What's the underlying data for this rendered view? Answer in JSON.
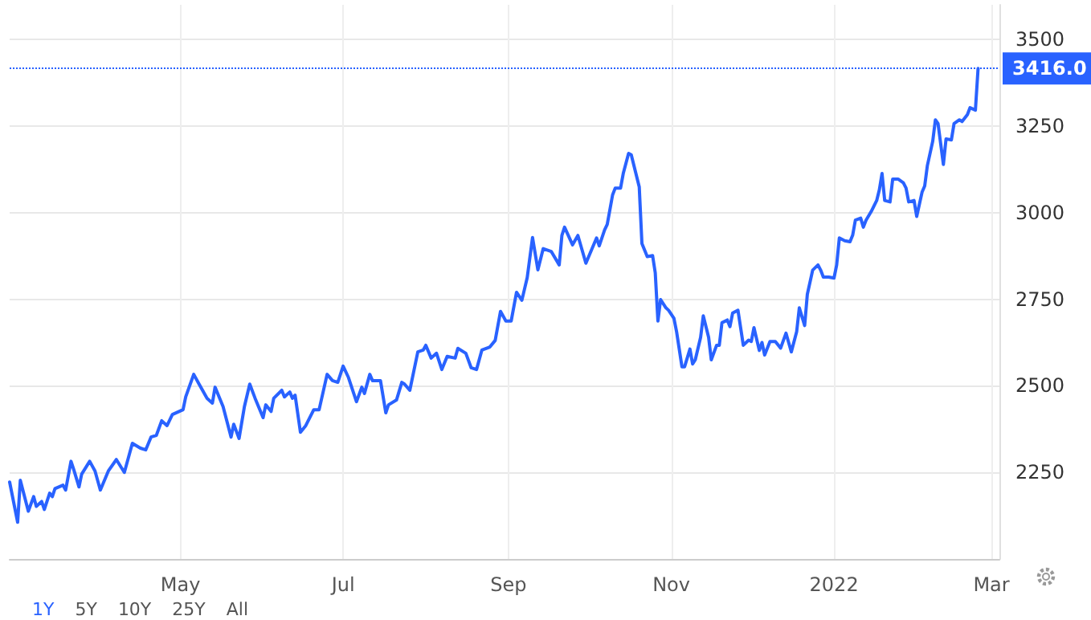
{
  "chart_data": {
    "type": "line",
    "x": [
      "2021-02-26",
      "2021-03-01",
      "2021-03-02",
      "2021-03-05",
      "2021-03-07",
      "2021-03-08",
      "2021-03-10",
      "2021-03-11",
      "2021-03-13",
      "2021-03-14",
      "2021-03-15",
      "2021-03-18",
      "2021-03-19",
      "2021-03-21",
      "2021-03-22",
      "2021-03-24",
      "2021-03-25",
      "2021-03-28",
      "2021-03-30",
      "2021-04-01",
      "2021-04-04",
      "2021-04-07",
      "2021-04-10",
      "2021-04-13",
      "2021-04-16",
      "2021-04-18",
      "2021-04-20",
      "2021-04-22",
      "2021-04-24",
      "2021-04-26",
      "2021-04-28",
      "2021-05-02",
      "2021-05-03",
      "2021-05-06",
      "2021-05-08",
      "2021-05-11",
      "2021-05-13",
      "2021-05-14",
      "2021-05-17",
      "2021-05-20",
      "2021-05-21",
      "2021-05-23",
      "2021-05-25",
      "2021-05-27",
      "2021-05-29",
      "2021-06-01",
      "2021-06-02",
      "2021-06-04",
      "2021-06-05",
      "2021-06-08",
      "2021-06-09",
      "2021-06-11",
      "2021-06-12",
      "2021-06-13",
      "2021-06-15",
      "2021-06-17",
      "2021-06-20",
      "2021-06-22",
      "2021-06-25",
      "2021-06-27",
      "2021-06-29",
      "2021-07-01",
      "2021-07-03",
      "2021-07-06",
      "2021-07-08",
      "2021-07-09",
      "2021-07-11",
      "2021-07-12",
      "2021-07-15",
      "2021-07-17",
      "2021-07-18",
      "2021-07-21",
      "2021-07-23",
      "2021-07-24",
      "2021-07-26",
      "2021-07-29",
      "2021-07-31",
      "2021-08-01",
      "2021-08-03",
      "2021-08-05",
      "2021-08-07",
      "2021-08-09",
      "2021-08-12",
      "2021-08-13",
      "2021-08-16",
      "2021-08-18",
      "2021-08-20",
      "2021-08-22",
      "2021-08-25",
      "2021-08-27",
      "2021-08-29",
      "2021-08-31",
      "2021-09-02",
      "2021-09-04",
      "2021-09-06",
      "2021-09-08",
      "2021-09-10",
      "2021-09-12",
      "2021-09-14",
      "2021-09-17",
      "2021-09-20",
      "2021-09-21",
      "2021-09-22",
      "2021-09-25",
      "2021-09-27",
      "2021-09-30",
      "2021-10-04",
      "2021-10-05",
      "2021-10-07",
      "2021-10-08",
      "2021-10-10",
      "2021-10-11",
      "2021-10-13",
      "2021-10-14",
      "2021-10-16",
      "2021-10-17",
      "2021-10-20",
      "2021-10-21",
      "2021-10-23",
      "2021-10-25",
      "2021-10-26",
      "2021-10-27",
      "2021-10-28",
      "2021-10-30",
      "2021-10-31",
      "2021-11-02",
      "2021-11-03",
      "2021-11-05",
      "2021-11-06",
      "2021-11-08",
      "2021-11-09",
      "2021-11-10",
      "2021-11-12",
      "2021-11-13",
      "2021-11-15",
      "2021-11-16",
      "2021-11-18",
      "2021-11-19",
      "2021-11-20",
      "2021-11-22",
      "2021-11-23",
      "2021-11-24",
      "2021-11-26",
      "2021-11-28",
      "2021-11-30",
      "2021-12-01",
      "2021-12-02",
      "2021-12-04",
      "2021-12-05",
      "2021-12-06",
      "2021-12-08",
      "2021-12-10",
      "2021-12-12",
      "2021-12-14",
      "2021-12-15",
      "2021-12-16",
      "2021-12-18",
      "2021-12-19",
      "2021-12-21",
      "2021-12-22",
      "2021-12-24",
      "2021-12-26",
      "2021-12-27",
      "2021-12-28",
      "2021-12-30",
      "2022-01-01",
      "2022-01-02",
      "2022-01-03",
      "2022-01-05",
      "2022-01-07",
      "2022-01-08",
      "2022-01-09",
      "2022-01-11",
      "2022-01-12",
      "2022-01-13",
      "2022-01-15",
      "2022-01-17",
      "2022-01-18",
      "2022-01-19",
      "2022-01-20",
      "2022-01-22",
      "2022-01-23",
      "2022-01-25",
      "2022-01-27",
      "2022-01-28",
      "2022-01-29",
      "2022-01-31",
      "2022-02-01",
      "2022-02-03",
      "2022-02-04",
      "2022-02-05",
      "2022-02-07",
      "2022-02-08",
      "2022-02-09",
      "2022-02-11",
      "2022-02-12",
      "2022-02-14",
      "2022-02-15",
      "2022-02-17",
      "2022-02-18",
      "2022-02-20",
      "2022-02-21",
      "2022-02-23",
      "2022-02-24"
    ],
    "series": [
      {
        "color": "#2962ff",
        "values": [
          2222,
          2106,
          2227,
          2138,
          2180,
          2152,
          2166,
          2143,
          2190,
          2180,
          2203,
          2213,
          2199,
          2282,
          2259,
          2208,
          2245,
          2282,
          2254,
          2199,
          2254,
          2287,
          2250,
          2334,
          2320,
          2315,
          2352,
          2357,
          2399,
          2385,
          2417,
          2431,
          2468,
          2533,
          2505,
          2464,
          2450,
          2496,
          2440,
          2352,
          2389,
          2348,
          2440,
          2505,
          2464,
          2408,
          2445,
          2426,
          2464,
          2487,
          2468,
          2482,
          2464,
          2473,
          2366,
          2385,
          2431,
          2431,
          2533,
          2515,
          2510,
          2557,
          2524,
          2454,
          2496,
          2478,
          2533,
          2515,
          2515,
          2422,
          2445,
          2459,
          2510,
          2505,
          2487,
          2598,
          2603,
          2617,
          2580,
          2594,
          2547,
          2585,
          2580,
          2608,
          2594,
          2552,
          2547,
          2603,
          2612,
          2631,
          2715,
          2687,
          2687,
          2770,
          2747,
          2812,
          2928,
          2835,
          2896,
          2888,
          2849,
          2934,
          2958,
          2907,
          2934,
          2854,
          2927,
          2904,
          2950,
          2966,
          3051,
          3071,
          3071,
          3113,
          3171,
          3167,
          3074,
          2911,
          2873,
          2876,
          2826,
          2687,
          2749,
          2725,
          2718,
          2695,
          2656,
          2555,
          2555,
          2606,
          2563,
          2575,
          2640,
          2702,
          2640,
          2575,
          2617,
          2617,
          2682,
          2690,
          2671,
          2710,
          2718,
          2617,
          2632,
          2628,
          2668,
          2602,
          2625,
          2589,
          2628,
          2628,
          2609,
          2652,
          2625,
          2598,
          2656,
          2725,
          2674,
          2764,
          2834,
          2849,
          2834,
          2814,
          2814,
          2811,
          2849,
          2927,
          2919,
          2916,
          2935,
          2978,
          2984,
          2958,
          2978,
          3004,
          3035,
          3066,
          3113,
          3035,
          3031,
          3097,
          3097,
          3086,
          3071,
          3031,
          3035,
          2989,
          3059,
          3077,
          3136,
          3206,
          3268,
          3257,
          3139,
          3213,
          3210,
          3257,
          3268,
          3263,
          3283,
          3303,
          3296,
          3416
        ]
      }
    ],
    "xlim": [
      "2021-02-26",
      "2022-03-04"
    ],
    "xticks": [
      {
        "value": "2021-05-01",
        "label": "May"
      },
      {
        "value": "2021-07-01",
        "label": "Jul"
      },
      {
        "value": "2021-09-01",
        "label": "Sep"
      },
      {
        "value": "2021-11-01",
        "label": "Nov"
      },
      {
        "value": "2022-01-01",
        "label": "2022"
      },
      {
        "value": "2022-03-01",
        "label": "Mar"
      }
    ],
    "ylim": [
      2000,
      3600
    ],
    "yticks": [
      2250,
      2500,
      2750,
      3000,
      3250,
      3500
    ],
    "ref_lines": [
      {
        "axis": "y",
        "value": 3416,
        "label": "3416.0",
        "color": "#2962ff",
        "line_style": "dotted"
      }
    ],
    "annotations": [
      "1Y",
      "5Y",
      "10Y",
      "25Y",
      "All"
    ],
    "grid": true,
    "marker": "none",
    "line_style": "solid"
  }
}
